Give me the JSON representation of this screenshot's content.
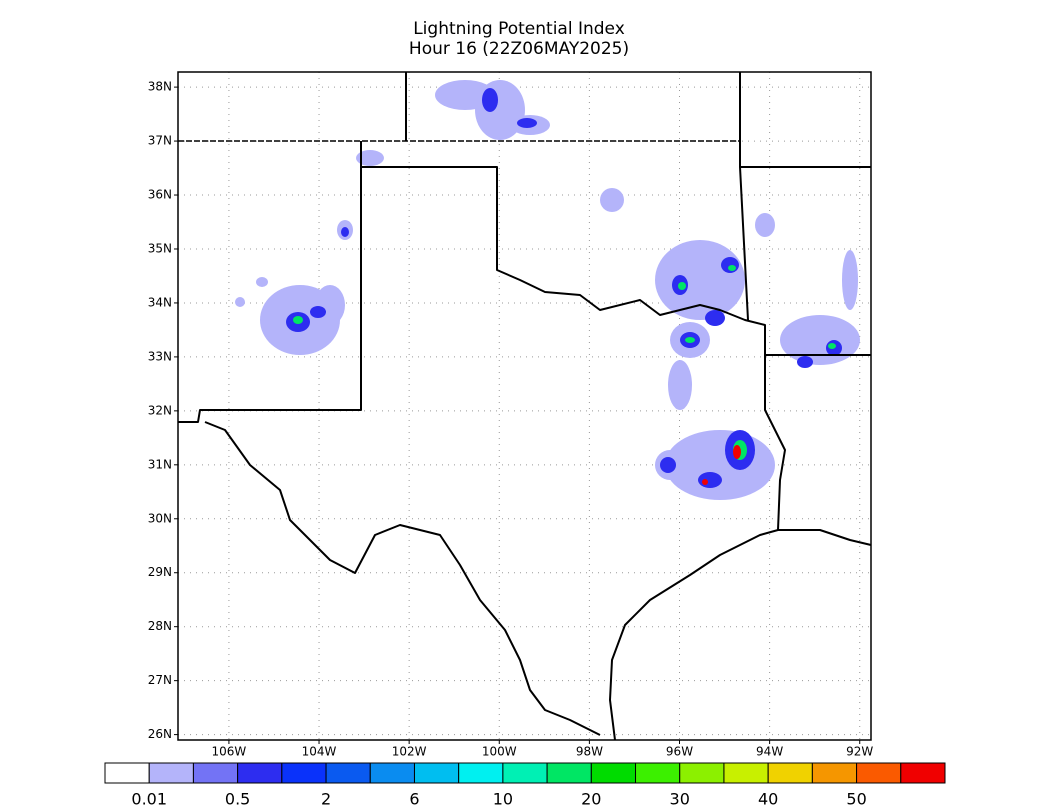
{
  "map": {
    "title": [
      "Lightning Potential Index",
      "Hour 16 (22Z06MAY2025)"
    ],
    "xlim": [
      -107.13,
      -91.75
    ],
    "ylim": [
      25.9,
      38.28
    ],
    "lat_ticks": [
      {
        "value": 26,
        "label": "26N"
      },
      {
        "value": 27,
        "label": "27N"
      },
      {
        "value": 28,
        "label": "28N"
      },
      {
        "value": 29,
        "label": "29N"
      },
      {
        "value": 30,
        "label": "30N"
      },
      {
        "value": 31,
        "label": "31N"
      },
      {
        "value": 32,
        "label": "32N"
      },
      {
        "value": 33,
        "label": "33N"
      },
      {
        "value": 34,
        "label": "34N"
      },
      {
        "value": 35,
        "label": "35N"
      },
      {
        "value": 36,
        "label": "36N"
      },
      {
        "value": 37,
        "label": "37N"
      },
      {
        "value": 38,
        "label": "38N"
      }
    ],
    "lon_ticks": [
      {
        "value": -106,
        "label": "106W"
      },
      {
        "value": -104,
        "label": "104W"
      },
      {
        "value": -102,
        "label": "102W"
      },
      {
        "value": -100,
        "label": "100W"
      },
      {
        "value": -98,
        "label": "98W"
      },
      {
        "value": -96,
        "label": "96W"
      },
      {
        "value": -94,
        "label": "94W"
      },
      {
        "value": -92,
        "label": "92W"
      }
    ],
    "colorbar": {
      "colors": [
        "#ffffff",
        "#b4b4fa",
        "#7373f5",
        "#2d2df0",
        "#0a32fa",
        "#0a5af0",
        "#0a8cf0",
        "#00bef0",
        "#00f0f0",
        "#00f0b4",
        "#00e664",
        "#00dc00",
        "#3cf000",
        "#8cf000",
        "#c8f000",
        "#f0d200",
        "#f59600",
        "#fa5a00",
        "#f00000"
      ],
      "levels": [
        0.01,
        0.5,
        2,
        6,
        10,
        20,
        30,
        40,
        50
      ]
    }
  }
}
